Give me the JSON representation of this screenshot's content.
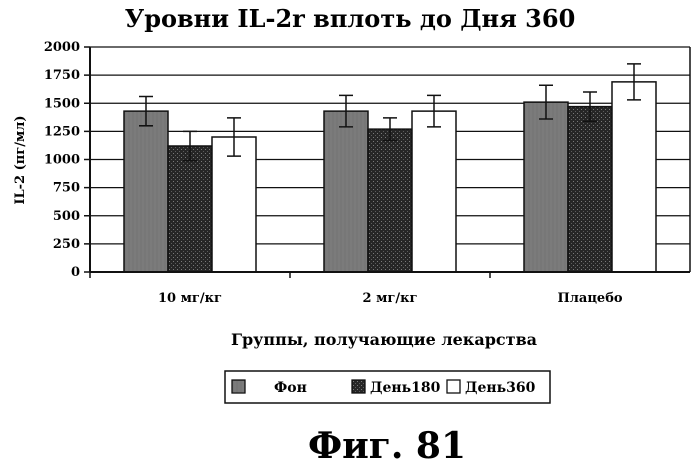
{
  "chart_data": {
    "type": "bar",
    "title": "Уровни IL-2r вплоть до Дня 360",
    "xlabel": "Группы, получающие лекарства",
    "ylabel": "IL-2 (пг/мл)",
    "ylim": [
      0,
      2000
    ],
    "yticks": [
      "0",
      "250",
      "500",
      "750",
      "1000",
      "1250",
      "1500",
      "1750",
      "2000"
    ],
    "grid": true,
    "categories": [
      "10 мг/кг",
      "2 мг/кг",
      "Плацебо"
    ],
    "series": [
      {
        "name": "Фон",
        "values": [
          1430,
          1430,
          1510
        ],
        "errors": [
          130,
          140,
          150
        ]
      },
      {
        "name": "День180",
        "values": [
          1120,
          1270,
          1470
        ],
        "errors": [
          130,
          100,
          130
        ]
      },
      {
        "name": "День360",
        "values": [
          1200,
          1430,
          1690
        ],
        "errors": [
          170,
          140,
          160
        ]
      }
    ],
    "legend_position": "bottom"
  },
  "caption": "Фиг. 81",
  "colors": {
    "series_fills": [
      "#8a8a8a",
      "#2a2a2a",
      "#ffffff"
    ],
    "ink": "#111111"
  }
}
